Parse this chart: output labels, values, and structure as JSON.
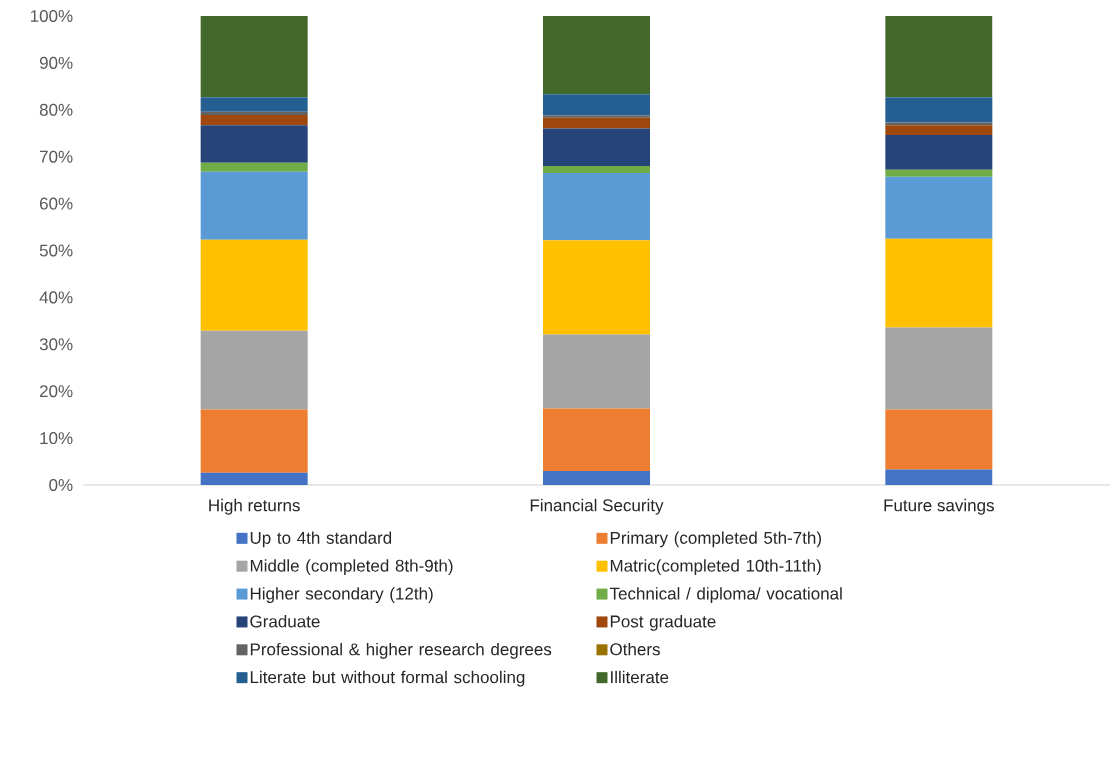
{
  "chart_data": {
    "type": "bar",
    "stacked": true,
    "categories": [
      "High returns",
      "Financial Security",
      "Future savings"
    ],
    "series": [
      {
        "name": "Up to 4th standard",
        "color": "#4472c4",
        "values": [
          2.6,
          3.0,
          3.3
        ]
      },
      {
        "name": "Primary (completed 5th-7th)",
        "color": "#ed7d31",
        "values": [
          13.5,
          13.3,
          12.8
        ]
      },
      {
        "name": "Middle (completed 8th-9th)",
        "color": "#a5a5a5",
        "values": [
          16.8,
          15.8,
          17.5
        ]
      },
      {
        "name": "Matric(completed 10th-11th)",
        "color": "#ffc000",
        "values": [
          19.4,
          20.1,
          18.9
        ]
      },
      {
        "name": "Higher secondary (12th)",
        "color": "#5b9bd5",
        "values": [
          14.5,
          14.3,
          13.2
        ]
      },
      {
        "name": "Technical / diploma/ vocational",
        "color": "#70ad47",
        "values": [
          1.9,
          1.5,
          1.5
        ]
      },
      {
        "name": "Graduate",
        "color": "#264478",
        "values": [
          8.0,
          8.0,
          7.4
        ]
      },
      {
        "name": "Post graduate",
        "color": "#9e480e",
        "values": [
          2.2,
          2.3,
          2.1
        ]
      },
      {
        "name": "Professional & higher research degrees",
        "color": "#636363",
        "values": [
          0.7,
          0.5,
          0.6
        ]
      },
      {
        "name": "Others",
        "color": "#997300",
        "values": [
          null,
          null,
          null
        ]
      },
      {
        "name": "Literate but without formal schooling",
        "color": "#255e91",
        "values": [
          3.1,
          4.5,
          5.4
        ]
      },
      {
        "name": "Illiterate",
        "color": "#43682b",
        "values": [
          17.3,
          16.7,
          17.3
        ]
      }
    ],
    "ylim": [
      0,
      100
    ],
    "yticks": [
      {
        "value": 0,
        "label": "0%"
      },
      {
        "value": 10,
        "label": "10%"
      },
      {
        "value": 20,
        "label": "20%"
      },
      {
        "value": 30,
        "label": "30%"
      },
      {
        "value": 40,
        "label": "40%"
      },
      {
        "value": 50,
        "label": "50%"
      },
      {
        "value": 60,
        "label": "60%"
      },
      {
        "value": 70,
        "label": "70%"
      },
      {
        "value": 80,
        "label": "80%"
      },
      {
        "value": 90,
        "label": "90%"
      },
      {
        "value": 100,
        "label": "100%"
      }
    ],
    "legend": "bottom",
    "grid": false
  }
}
